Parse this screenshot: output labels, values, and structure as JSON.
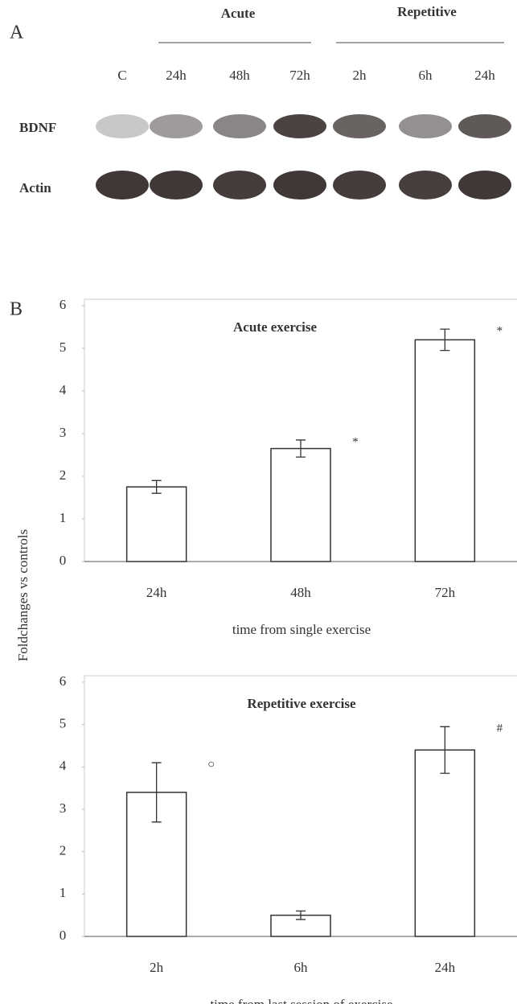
{
  "panel_a": {
    "label": "A",
    "groups": [
      "Acute",
      "Repetitive"
    ],
    "lanes": [
      "C",
      "24h",
      "48h",
      "72h",
      "2h",
      "6h",
      "24h"
    ],
    "rows": [
      "BDNF",
      "Actin"
    ]
  },
  "panel_b": {
    "label": "B",
    "ylabel": "Foldchanges vs controls"
  },
  "chart_data": [
    {
      "type": "bar",
      "title": "Acute exercise",
      "xlabel": "time from single exercise",
      "categories": [
        "24h",
        "48h",
        "72h"
      ],
      "values": [
        1.75,
        2.65,
        5.2
      ],
      "errors": [
        0.15,
        0.2,
        0.25
      ],
      "color": "#ffffff",
      "edgecolor": "#333333",
      "ylim": [
        0,
        6
      ],
      "yticks": [
        0,
        1,
        2,
        3,
        4,
        5,
        6
      ],
      "annotations": [
        {
          "x": "48h",
          "text": "*"
        },
        {
          "x": "72h",
          "text": "*"
        }
      ]
    },
    {
      "type": "bar",
      "title": "Repetitive exercise",
      "xlabel": "time from last session of exercise",
      "categories": [
        "2h",
        "6h",
        "24h"
      ],
      "values": [
        3.4,
        0.5,
        4.4
      ],
      "errors": [
        0.7,
        0.1,
        0.55
      ],
      "color": "#ffffff",
      "edgecolor": "#333333",
      "ylim": [
        0,
        6
      ],
      "yticks": [
        0,
        1,
        2,
        3,
        4,
        5,
        6
      ],
      "annotations": [
        {
          "x": "2h",
          "text": "○"
        },
        {
          "x": "24h",
          "text": "#"
        }
      ]
    }
  ]
}
